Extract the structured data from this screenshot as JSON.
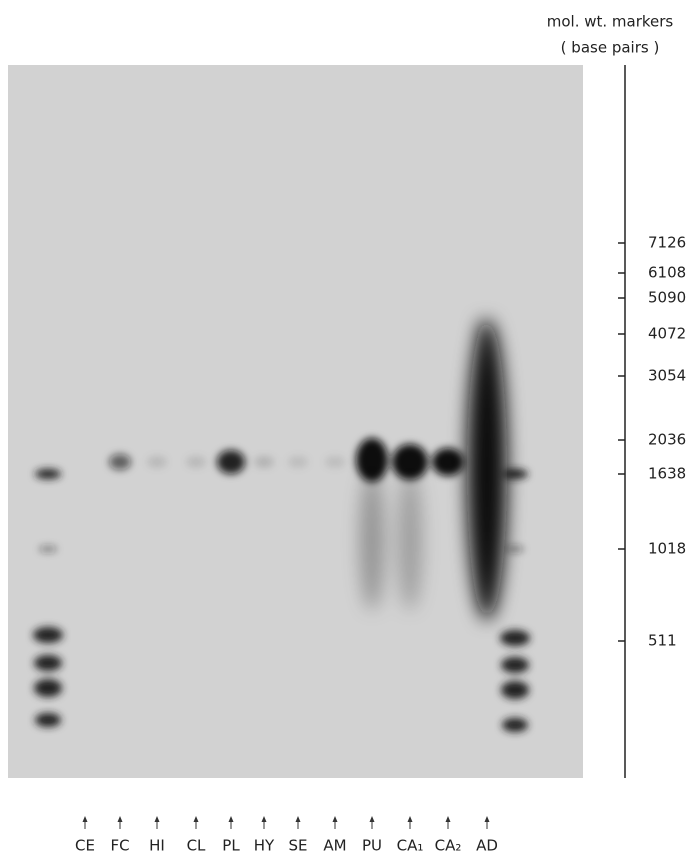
{
  "header": {
    "title": "mol. wt. markers",
    "subtitle": "( base pairs )"
  },
  "markers": [
    "7126",
    "6108",
    "5090",
    "4072",
    "3054",
    "2036",
    "1638",
    "1018",
    "511"
  ],
  "lanes": [
    "CE",
    "FC",
    "HI",
    "CL",
    "PL",
    "HY",
    "SE",
    "AM",
    "PU",
    "CA₁",
    "CA₂",
    "AD"
  ]
}
